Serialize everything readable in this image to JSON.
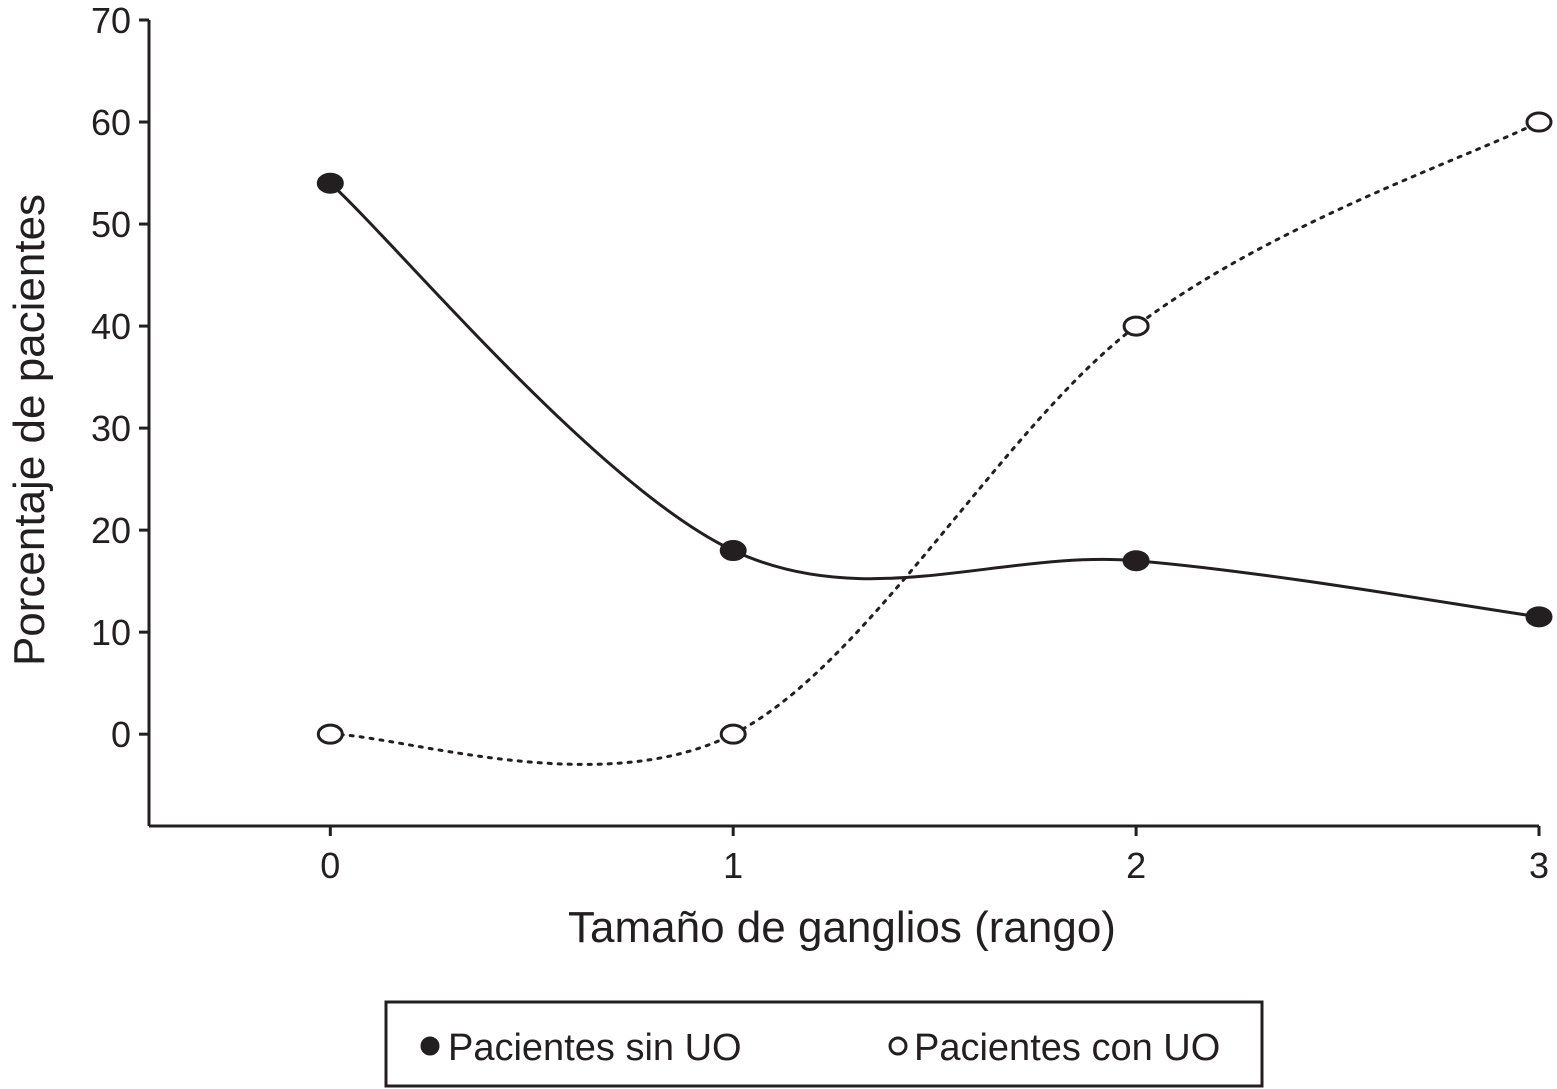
{
  "chart_data": {
    "type": "line",
    "xlabel": "Tamaño de ganglios (rango)",
    "ylabel": "Porcentaje de pacientes",
    "x": [
      0,
      1,
      2,
      3
    ],
    "x_ticks": [
      "0",
      "1",
      "2",
      "3"
    ],
    "y_ticks": [
      "0",
      "10",
      "20",
      "30",
      "40",
      "50",
      "60",
      "70"
    ],
    "xlim": [
      -0.45,
      3
    ],
    "ylim": [
      -9,
      70
    ],
    "grid": false,
    "legend_position": "bottom",
    "series": [
      {
        "name": "Pacientes sin UO",
        "values": [
          54,
          18,
          17,
          11.5
        ],
        "marker": "filled-circle",
        "line_style": "solid",
        "color": "#231f20"
      },
      {
        "name": "Pacientes con UO",
        "values": [
          0,
          0,
          40,
          60
        ],
        "marker": "open-circle",
        "line_style": "dotted",
        "color": "#231f20"
      }
    ]
  }
}
